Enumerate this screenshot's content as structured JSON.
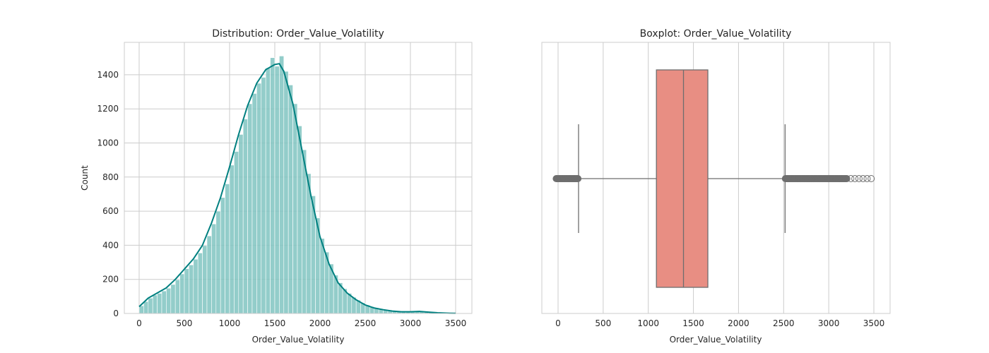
{
  "chart_data": [
    {
      "type": "bar",
      "title": "Distribution: Order_Value_Volatility",
      "xlabel": "Order_Value_Volatility",
      "ylabel": "Count",
      "xlim": [
        -164,
        3680
      ],
      "ylim": [
        0,
        1590
      ],
      "xticks": [
        0,
        500,
        1000,
        1500,
        2000,
        2500,
        3000,
        3500
      ],
      "yticks": [
        0,
        200,
        400,
        600,
        800,
        1000,
        1200,
        1400
      ],
      "grid": true,
      "bin_width": 50,
      "bin_starts_from": 0,
      "values": [
        45,
        70,
        90,
        108,
        118,
        132,
        148,
        170,
        198,
        232,
        262,
        285,
        318,
        355,
        398,
        455,
        525,
        600,
        680,
        760,
        870,
        950,
        1050,
        1140,
        1230,
        1290,
        1350,
        1385,
        1440,
        1500,
        1450,
        1510,
        1420,
        1340,
        1230,
        1100,
        960,
        820,
        690,
        560,
        440,
        360,
        290,
        225,
        180,
        145,
        118,
        95,
        78,
        62,
        50,
        40,
        33,
        27,
        22,
        18,
        14,
        12,
        10,
        9,
        10,
        11,
        12,
        11,
        8,
        6,
        4,
        3,
        2,
        1
      ],
      "kde": {
        "x": [
          0,
          100,
          200,
          300,
          400,
          500,
          600,
          700,
          800,
          900,
          1000,
          1100,
          1200,
          1300,
          1400,
          1500,
          1550,
          1600,
          1700,
          1800,
          1900,
          2000,
          2100,
          2200,
          2300,
          2400,
          2500,
          2600,
          2700,
          2800,
          2900,
          3000,
          3100,
          3200,
          3300,
          3400,
          3500
        ],
        "y": [
          40,
          90,
          120,
          150,
          200,
          260,
          320,
          400,
          530,
          680,
          860,
          1050,
          1220,
          1350,
          1430,
          1460,
          1465,
          1420,
          1230,
          960,
          690,
          450,
          290,
          180,
          120,
          80,
          50,
          32,
          22,
          14,
          10,
          10,
          12,
          8,
          4,
          2,
          1
        ]
      },
      "colors": {
        "bar": "#80c4c1",
        "kde": "#008080"
      }
    },
    {
      "type": "boxplot",
      "title": "Boxplot: Order_Value_Volatility",
      "xlabel": "Order_Value_Volatility",
      "xlim": [
        -180,
        3680
      ],
      "xticks": [
        0,
        500,
        1000,
        1500,
        2000,
        2500,
        3000,
        3500
      ],
      "grid": true,
      "q1": 1090,
      "median": 1390,
      "q3": 1660,
      "whisker_low": 227,
      "whisker_high": 2516,
      "outliers_low_range": [
        -20,
        220
      ],
      "outliers_high_range": [
        2520,
        3510
      ],
      "colors": {
        "box": "#e88e83",
        "line": "#6e6e6e"
      }
    }
  ]
}
